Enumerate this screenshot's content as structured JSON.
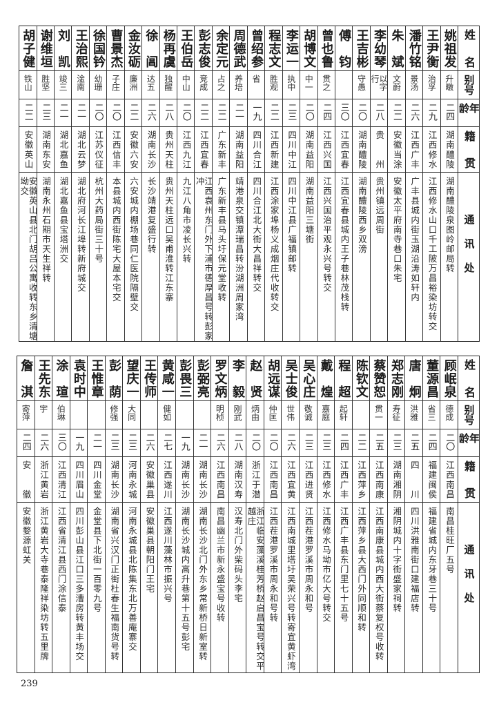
{
  "header": {
    "name": "姓名",
    "alias": "别号",
    "age": "年龄",
    "native": "籍贯",
    "address": "通讯处"
  },
  "top_rows": [
    {
      "name": "姚祖发",
      "alias": "升暾",
      "age": "二四",
      "native": "湖南醴陵",
      "address": "湖南醴陵泉图岭邮局转"
    },
    {
      "name": "王尹衡",
      "alias": "治孚",
      "age": "二九",
      "native": "江西修水",
      "address": "江西修水山口千工陂万昌裕染坊转交"
    },
    {
      "name": "潘竹铭",
      "alias": "景汤",
      "age": "二六",
      "native": "江西广丰",
      "address": "广丰县城内街玉湖沿涛如轩内"
    },
    {
      "name": "朱斌",
      "alias": "文蔚",
      "age": "二二",
      "native": "安徽当涂",
      "address": "安徽太平府南寺巷口朱宅"
    },
    {
      "name": "李幼琴",
      "alias": "以字行",
      "age": "二八",
      "native": "贵州",
      "address": "贵州镇远周街"
    },
    {
      "name": "王吉彬",
      "alias": "守愚",
      "age": "二〇",
      "native": "湖南醴陵",
      "address": "湖南醴陵西乡双滂"
    },
    {
      "name": "傅钧",
      "alias": "",
      "age": "三〇",
      "native": "江西宜春",
      "address": "江西宜春县城内王子巷林茂栈转"
    },
    {
      "name": "曾也鲁",
      "alias": "贯之",
      "age": "二四",
      "native": "江西兴国",
      "address": "江西兴国治平观永兴号转交"
    },
    {
      "name": "胡博文",
      "alias": "中一",
      "age": "二〇",
      "native": "湖南益阳",
      "address": "湖南益阳三塘街"
    },
    {
      "name": "李运一",
      "alias": "执中",
      "age": "二三",
      "native": "四川中江",
      "address": "四川中江县广福镇邮转"
    },
    {
      "name": "程志文",
      "alias": "胜观",
      "age": "二二",
      "native": "江西新建",
      "address": "江西涂家埠杨义成烟庄代收转交"
    },
    {
      "name": "曾绍参",
      "alias": "省",
      "age": "一九",
      "native": "四川合江",
      "address": "四川合江北大街大昌祥转交"
    },
    {
      "name": "周德武",
      "alias": "养培",
      "age": "二一",
      "native": "湖南益阳",
      "address": "靖港泉交镇潭瑞昌转汾湖洲周家湾"
    },
    {
      "name": "余定元",
      "alias": "占之",
      "age": "二二",
      "native": "广东新丰",
      "address": "广东新丰县马头圩保元堂收转"
    },
    {
      "name": "彭志俊",
      "alias": "竞成",
      "age": "二二",
      "native": "江西宜春",
      "address": "江西袁州东门外下浦市德厚昌号转彭家冲"
    },
    {
      "name": "王伯岳",
      "alias": "中山",
      "age": "二〇",
      "native": "江西九江",
      "address": "九江八角市凌长兴转"
    },
    {
      "name": "杨再虞",
      "alias": "独醒",
      "age": "二八",
      "native": "贵州天柱",
      "address": "贵州天柱远口吴甫淮转江东寨"
    },
    {
      "name": "徐阊",
      "alias": "达五",
      "age": "二六",
      "native": "湖南长沙",
      "address": "长沙靖港复盛行转"
    },
    {
      "name": "金汝砺",
      "alias": "廉洲",
      "age": "二二",
      "native": "安徽六安",
      "address": "六安城内棚场巷同仁医院隔壁交"
    },
    {
      "name": "曹景杰",
      "alias": "子庄",
      "age": "二〇",
      "native": "江西信丰",
      "address": "本县城内西街陈宅大屋本宅交"
    },
    {
      "name": "徐国钤",
      "alias": "幼珊",
      "age": "二〇",
      "native": "江苏仪征",
      "address": "杭州大药局街三十号"
    },
    {
      "name": "王治熙",
      "alias": "淦南",
      "age": "二一",
      "native": "湖北云梦",
      "address": "湖北府河长江埠转新府城交"
    },
    {
      "name": "刘凯",
      "alias": "竣三",
      "age": "二一",
      "native": "湖北嘉鱼",
      "address": "湖北嘉鱼县宝塔洲交"
    },
    {
      "name": "谢维垣",
      "alias": "胜坚",
      "age": "二三",
      "native": "湖南东安",
      "address": "湖南永州石期市天生祥转"
    },
    {
      "name": "胡子健",
      "alias": "铁山",
      "age": "二二",
      "native": "安徽英山",
      "address": "安徽英山县北门胡吕公寓收转东乡清塘坳交"
    }
  ],
  "bottom_rows": [
    {
      "name": "顾岷泉",
      "alias": "德成",
      "age": "二〇",
      "native": "江西南昌",
      "address": "南昌桂旺厂五号"
    },
    {
      "name": "董源昌",
      "alias": "省三",
      "age": "二四",
      "native": "福建闽侯",
      "address": "福建省城内东牙巷三十号"
    },
    {
      "name": "唐炯",
      "alias": "洪雅",
      "age": "二五",
      "native": "四川",
      "address": "四川洪雅南街口建福店转"
    },
    {
      "name": "郑志刚",
      "alias": "寿征",
      "age": "二三",
      "native": "湖南湘阴",
      "address": "湘阴城内十字街盛家祠转"
    },
    {
      "name": "蔡赞恕",
      "alias": "贯一",
      "age": "二五",
      "native": "江西南康",
      "address": "江西南康县城内西大街蔡复权号收转"
    },
    {
      "name": "陈钦文",
      "alias": "",
      "age": "二二",
      "native": "江西萍乡",
      "address": "江西萍乡县大西门外同顺和转"
    },
    {
      "name": "程超",
      "alias": "起轩",
      "age": "二四",
      "native": "江西广丰",
      "address": "江西广丰县东门里七十五号"
    },
    {
      "name": "戴煌",
      "alias": "嘉庭",
      "age": "二三",
      "native": "江西修水",
      "address": "江西修水马坳市亿大号转交"
    },
    {
      "name": "吴心庄",
      "alias": "敬诚",
      "age": "二三",
      "native": "江西进贤",
      "address": "江西茬港罗溪市周永和号"
    },
    {
      "name": "吴士俊",
      "alias": "世伟",
      "age": "二六",
      "native": "江西宜黄",
      "address": "江西南城里塔圩吴荣兴号转寄宜黄虾湾"
    },
    {
      "name": "胡远谋",
      "alias": "仲匡",
      "age": "二〇",
      "native": "江西南昌",
      "address": "江西茬港罗溪市周永和号转"
    },
    {
      "name": "赵贤",
      "alias": "炳由",
      "age": "二〇",
      "native": "浙江于潜",
      "address": "浙江临安藻溪桂芳桥赵启昌宝号转交平越庄"
    },
    {
      "name": "李毅",
      "alias": "刚武",
      "age": "二八",
      "native": "湖南汉寿",
      "address": "汉寿北门外柴码头李宅"
    },
    {
      "name": "罗文炳",
      "alias": "明桢",
      "age": "二六",
      "native": "江西南昌",
      "address": "南昌幽兰市新永盛宝号收转"
    },
    {
      "name": "彭弼亮",
      "alias": "",
      "age": "二一",
      "native": "湖南长沙",
      "address": "湖南长沙北门外东乡常新桥日新室转"
    },
    {
      "name": "彭畏三",
      "alias": "",
      "age": "一九",
      "native": "湖南长沙",
      "address": "湖南长沙城内高升巷第十五号彭宅"
    },
    {
      "name": "黄咸一",
      "alias": "健如",
      "age": "二七",
      "native": "江西遂川",
      "address": "江西遂川藻林市振兴号"
    },
    {
      "name": "王传师",
      "alias": "",
      "age": "二六",
      "native": "安徽巢县",
      "address": "安徽巢县朝阳门王宅"
    },
    {
      "name": "望庆一",
      "alias": "大同",
      "age": "二三",
      "native": "河南永城",
      "address": "河南永城县北陈集东北万善庵寨交"
    },
    {
      "name": "彭荫",
      "alias": "修强",
      "age": "二三",
      "native": "湖南长沙",
      "address": "湖南省兴汉门正街杜春生福南货号转"
    },
    {
      "name": "王惟章",
      "alias": "",
      "age": "二一",
      "native": "四川金堂",
      "address": "金堂县下北街一百零九号"
    },
    {
      "name": "袁时中",
      "alias": "",
      "age": "一九",
      "native": "四川眉山",
      "address": "四川彭山县江口三多漕房转黄丰场交"
    },
    {
      "name": "涂瑄",
      "alias": "伯琳",
      "age": "三〇",
      "native": "江西清江",
      "address": "江西省清江县西门涂信泰"
    },
    {
      "name": "王先东",
      "alias": "宇",
      "age": "二六",
      "native": "浙江黄岩",
      "address": "浙江黄岩大寺巷泰隆祥染坊转五里牌"
    },
    {
      "name": "詹淇",
      "alias": "寄萍",
      "age": "二四",
      "native": "安徽",
      "address": "安徽婺源虹关"
    }
  ],
  "page_number": "239"
}
